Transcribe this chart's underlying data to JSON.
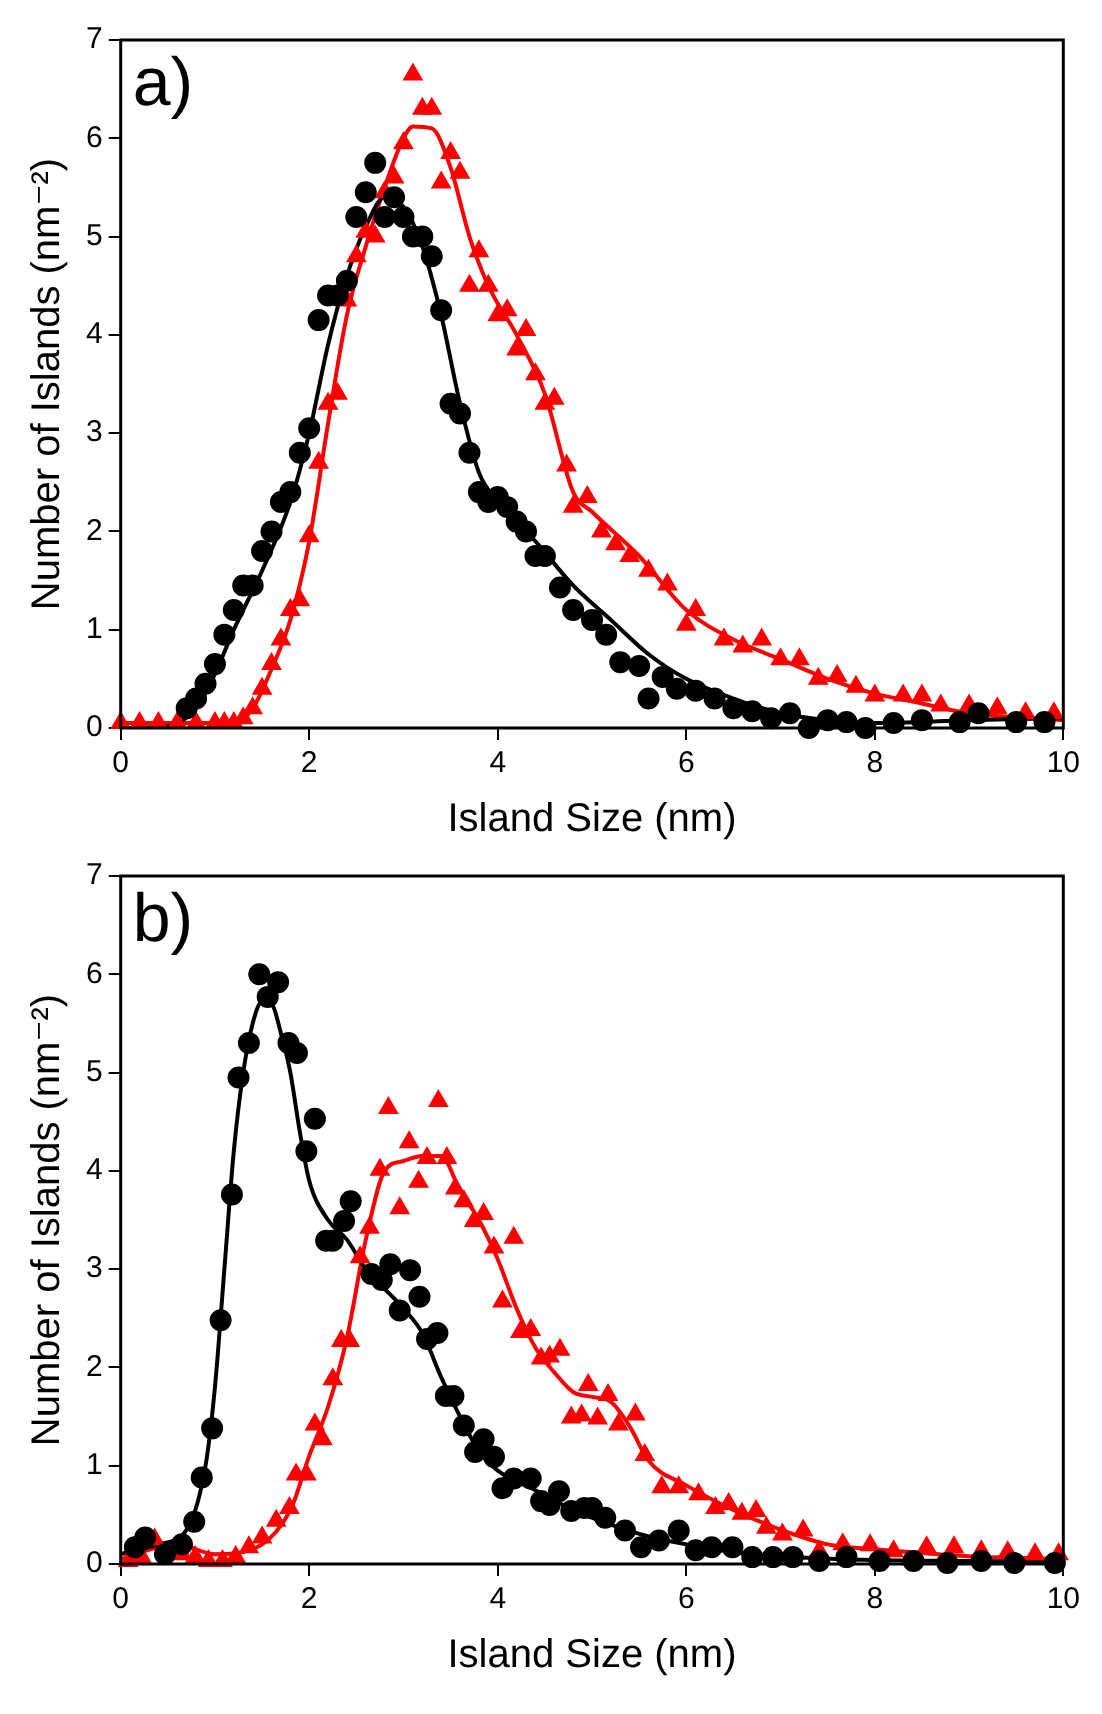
{
  "chart_data": [
    {
      "type": "scatter",
      "xlabel": "Island Size (nm)",
      "ylabel": "Number of Islands (nm⁻²)",
      "annotations": [
        "a)"
      ],
      "xlim": [
        0,
        10
      ],
      "xticks": [
        0,
        2,
        4,
        6,
        8,
        10
      ],
      "ylim": [
        0,
        7
      ],
      "yticks": [
        0,
        1,
        2,
        3,
        4,
        5,
        6,
        7
      ],
      "grid": false,
      "legend": false,
      "series": [
        {
          "type": "scatter",
          "marker": "circle",
          "color": "#000000",
          "x": [
            0.7,
            0.8,
            0.9,
            1.0,
            1.1,
            1.2,
            1.3,
            1.4,
            1.5,
            1.6,
            1.7,
            1.8,
            1.9,
            2.0,
            2.1,
            2.2,
            2.3,
            2.4,
            2.5,
            2.6,
            2.7,
            2.8,
            2.9,
            3.0,
            3.1,
            3.2,
            3.3,
            3.4,
            3.5,
            3.6,
            3.7,
            3.8,
            3.9,
            4.0,
            4.1,
            4.2,
            4.3,
            4.4,
            4.5,
            4.66,
            4.8,
            5.0,
            5.15,
            5.3,
            5.5,
            5.6,
            5.75,
            5.9,
            6.1,
            6.3,
            6.5,
            6.7,
            6.9,
            7.1,
            7.3,
            7.5,
            7.7,
            7.9,
            8.2,
            8.5,
            8.9,
            9.1,
            9.5,
            9.8
          ],
          "values": [
            0.2,
            0.3,
            0.45,
            0.65,
            0.95,
            1.2,
            1.45,
            1.45,
            1.8,
            2.0,
            2.3,
            2.4,
            2.8,
            3.05,
            4.15,
            4.4,
            4.4,
            4.55,
            5.2,
            5.45,
            5.75,
            5.2,
            5.4,
            5.2,
            5.0,
            5.0,
            4.8,
            4.25,
            3.3,
            3.2,
            2.8,
            2.4,
            2.3,
            2.35,
            2.25,
            2.1,
            2.0,
            1.75,
            1.75,
            1.43,
            1.2,
            1.1,
            0.95,
            0.67,
            0.63,
            0.3,
            0.52,
            0.4,
            0.38,
            0.3,
            0.2,
            0.17,
            0.1,
            0.15,
            0.0,
            0.08,
            0.06,
            0.0,
            0.05,
            0.08,
            0.06,
            0.15,
            0.06,
            0.06
          ]
        },
        {
          "type": "scatter",
          "marker": "triangle",
          "color": "#ff0000",
          "x": [
            0,
            0.2,
            0.4,
            0.6,
            0.8,
            1.0,
            1.1,
            1.2,
            1.3,
            1.4,
            1.5,
            1.6,
            1.7,
            1.8,
            1.9,
            2.0,
            2.1,
            2.2,
            2.3,
            2.4,
            2.5,
            2.6,
            2.7,
            2.8,
            2.9,
            3.0,
            3.1,
            3.2,
            3.3,
            3.4,
            3.5,
            3.6,
            3.7,
            3.8,
            3.9,
            4.0,
            4.1,
            4.2,
            4.3,
            4.4,
            4.5,
            4.6,
            4.73,
            4.8,
            4.95,
            5.1,
            5.25,
            5.4,
            5.6,
            5.8,
            6.0,
            6.1,
            6.4,
            6.6,
            6.8,
            7.0,
            7.2,
            7.4,
            7.6,
            7.8,
            8.0,
            8.3,
            8.5,
            8.7,
            9.0,
            9.3,
            9.6,
            9.9
          ],
          "values": [
            0.05,
            0.05,
            0.05,
            0.05,
            0.05,
            0.05,
            0.05,
            0.05,
            0.1,
            0.2,
            0.4,
            0.65,
            0.9,
            1.2,
            1.3,
            1.95,
            2.7,
            3.3,
            3.4,
            4.35,
            4.8,
            5.05,
            5.0,
            5.45,
            5.6,
            5.95,
            6.65,
            6.3,
            6.3,
            5.55,
            5.85,
            5.65,
            4.5,
            4.85,
            4.5,
            4.2,
            4.25,
            3.85,
            4.05,
            3.6,
            3.3,
            3.35,
            2.67,
            2.25,
            2.35,
            2.0,
            1.87,
            1.75,
            1.6,
            1.46,
            1.05,
            1.2,
            0.9,
            0.83,
            0.9,
            0.7,
            0.7,
            0.5,
            0.53,
            0.42,
            0.33,
            0.33,
            0.33,
            0.23,
            0.23,
            0.2,
            0.15,
            0.15
          ]
        },
        {
          "type": "line",
          "marker": "none",
          "color": "#000000",
          "x": [
            0,
            0.5,
            0.8,
            1.0,
            1.2,
            1.5,
            1.8,
            2.0,
            2.2,
            2.4,
            2.6,
            2.8,
            3.0,
            3.2,
            3.4,
            3.6,
            3.8,
            4.0,
            4.4,
            4.8,
            5.2,
            5.6,
            6.0,
            6.5,
            7.0,
            7.5,
            8.0,
            9.0,
            10
          ],
          "values": [
            0,
            0.02,
            0.2,
            0.55,
            1.0,
            1.6,
            2.3,
            3.0,
            3.9,
            4.6,
            5.1,
            5.4,
            5.3,
            4.9,
            4.2,
            3.3,
            2.6,
            2.3,
            1.9,
            1.45,
            1.1,
            0.75,
            0.5,
            0.3,
            0.15,
            0.08,
            0.05,
            0.08,
            0.1
          ]
        },
        {
          "type": "line",
          "marker": "none",
          "color": "#ff0000",
          "x": [
            0,
            1.2,
            1.4,
            1.6,
            1.8,
            2.0,
            2.2,
            2.4,
            2.6,
            2.8,
            3.0,
            3.1,
            3.3,
            3.5,
            3.7,
            3.9,
            4.2,
            4.5,
            4.8,
            5.0,
            5.5,
            6.0,
            6.5,
            7.0,
            7.5,
            8.0,
            8.5,
            9.0,
            10
          ],
          "values": [
            0.05,
            0.05,
            0.2,
            0.6,
            1.1,
            1.9,
            3.1,
            4.2,
            4.9,
            5.5,
            6.0,
            6.12,
            6.1,
            5.7,
            5.0,
            4.5,
            4.0,
            3.4,
            2.4,
            2.2,
            1.75,
            1.2,
            0.9,
            0.7,
            0.5,
            0.35,
            0.25,
            0.15,
            0.08
          ]
        }
      ]
    },
    {
      "type": "scatter",
      "xlabel": "Island Size (nm)",
      "ylabel": "Number of Islands (nm⁻²)",
      "annotations": [
        "b)"
      ],
      "xlim": [
        0,
        10
      ],
      "xticks": [
        0,
        2,
        4,
        6,
        8,
        10
      ],
      "ylim": [
        0,
        7
      ],
      "yticks": [
        0,
        1,
        2,
        3,
        4,
        5,
        6,
        7
      ],
      "grid": false,
      "legend": false,
      "series": [
        {
          "type": "scatter",
          "marker": "circle",
          "color": "#000000",
          "x": [
            0.15,
            0.26,
            0.47,
            0.65,
            0.78,
            0.86,
            0.97,
            1.06,
            1.18,
            1.25,
            1.36,
            1.47,
            1.56,
            1.67,
            1.78,
            1.87,
            1.97,
            2.06,
            2.18,
            2.25,
            2.37,
            2.44,
            2.66,
            2.77,
            2.86,
            2.96,
            3.07,
            3.17,
            3.25,
            3.36,
            3.45,
            3.53,
            3.64,
            3.76,
            3.85,
            3.96,
            4.05,
            4.17,
            4.35,
            4.46,
            4.55,
            4.65,
            4.78,
            4.92,
            5.0,
            5.14,
            5.35,
            5.52,
            5.71,
            5.92,
            6.1,
            6.27,
            6.49,
            6.7,
            6.92,
            7.13,
            7.41,
            7.7,
            8.05,
            8.41,
            8.77,
            9.13,
            9.48,
            9.91
          ],
          "values": [
            0.17,
            0.27,
            0.1,
            0.2,
            0.43,
            0.88,
            1.38,
            2.48,
            3.76,
            4.95,
            5.3,
            6.0,
            5.77,
            5.92,
            5.3,
            5.2,
            4.2,
            4.53,
            3.29,
            3.29,
            3.49,
            3.69,
            2.95,
            2.89,
            3.05,
            2.58,
            2.99,
            2.72,
            2.29,
            2.35,
            1.71,
            1.71,
            1.41,
            1.14,
            1.27,
            1.09,
            0.77,
            0.87,
            0.87,
            0.64,
            0.6,
            0.74,
            0.54,
            0.57,
            0.57,
            0.47,
            0.34,
            0.17,
            0.24,
            0.34,
            0.14,
            0.17,
            0.17,
            0.07,
            0.07,
            0.07,
            0.03,
            0.07,
            0.03,
            0.03,
            0.01,
            0.03,
            0.01,
            0.01
          ]
        },
        {
          "type": "scatter",
          "marker": "triangle",
          "color": "#ff0000",
          "x": [
            0.08,
            0.22,
            0.36,
            0.65,
            0.79,
            0.93,
            1.08,
            1.22,
            1.36,
            1.5,
            1.65,
            1.79,
            1.86,
            1.97,
            2.06,
            2.14,
            2.25,
            2.34,
            2.43,
            2.54,
            2.64,
            2.75,
            2.84,
            2.96,
            3.06,
            3.16,
            3.25,
            3.37,
            3.46,
            3.55,
            3.64,
            3.75,
            3.85,
            3.96,
            4.05,
            4.17,
            4.24,
            4.35,
            4.46,
            4.55,
            4.66,
            4.78,
            4.89,
            4.96,
            5.06,
            5.17,
            5.28,
            5.46,
            5.56,
            5.74,
            5.92,
            6.13,
            6.31,
            6.45,
            6.59,
            6.74,
            6.85,
            7.02,
            7.24,
            7.41,
            7.66,
            7.95,
            8.2,
            8.55,
            8.84,
            9.13,
            9.41,
            9.7,
            9.95
          ],
          "values": [
            0.03,
            0.07,
            0.25,
            0.1,
            0.07,
            0.03,
            0.03,
            0.07,
            0.17,
            0.27,
            0.44,
            0.57,
            0.91,
            0.91,
            1.42,
            1.27,
            1.88,
            2.27,
            2.27,
            3.12,
            3.42,
            4.01,
            4.64,
            3.62,
            4.29,
            3.89,
            4.13,
            4.71,
            4.13,
            3.82,
            3.69,
            3.49,
            3.56,
            3.22,
            2.67,
            3.32,
            2.36,
            2.38,
            2.09,
            2.11,
            2.18,
            1.49,
            1.51,
            1.82,
            1.48,
            1.72,
            1.42,
            1.52,
            1.11,
            0.78,
            0.78,
            0.71,
            0.57,
            0.61,
            0.51,
            0.54,
            0.37,
            0.3,
            0.34,
            0.13,
            0.2,
            0.19,
            0.13,
            0.17,
            0.17,
            0.13,
            0.12,
            0.1,
            0.1
          ]
        },
        {
          "type": "line",
          "marker": "none",
          "color": "#000000",
          "x": [
            0,
            0.4,
            0.7,
            0.9,
            1.0,
            1.1,
            1.2,
            1.3,
            1.4,
            1.5,
            1.6,
            1.7,
            1.8,
            1.9,
            2.0,
            2.2,
            2.4,
            2.6,
            2.8,
            3.0,
            3.2,
            3.4,
            3.6,
            3.8,
            4.0,
            4.4,
            4.8,
            5.2,
            5.6,
            6.0,
            6.5,
            7.0,
            8.0,
            9.0,
            10
          ],
          "values": [
            0.1,
            0.2,
            0.35,
            1.0,
            1.8,
            3.0,
            4.2,
            5.0,
            5.5,
            5.72,
            5.7,
            5.4,
            5.0,
            4.4,
            3.9,
            3.5,
            3.3,
            3.0,
            2.8,
            2.6,
            2.35,
            1.9,
            1.5,
            1.15,
            0.95,
            0.75,
            0.55,
            0.4,
            0.28,
            0.2,
            0.12,
            0.08,
            0.04,
            0.03,
            0.02
          ]
        },
        {
          "type": "line",
          "marker": "none",
          "color": "#ff0000",
          "x": [
            0,
            0.6,
            1.0,
            1.4,
            1.8,
            2.0,
            2.2,
            2.4,
            2.6,
            2.8,
            3.0,
            3.2,
            3.4,
            3.6,
            3.8,
            4.0,
            4.2,
            4.4,
            4.6,
            4.8,
            5.0,
            5.2,
            5.4,
            5.6,
            6.0,
            6.5,
            7.0,
            7.5,
            8.0,
            9.0,
            10
          ],
          "values": [
            0.05,
            0.2,
            0.1,
            0.15,
            0.55,
            1.1,
            1.6,
            2.3,
            3.3,
            4.0,
            4.1,
            4.15,
            4.15,
            3.8,
            3.5,
            3.1,
            2.6,
            2.2,
            1.95,
            1.75,
            1.7,
            1.65,
            1.4,
            1.05,
            0.8,
            0.55,
            0.35,
            0.2,
            0.15,
            0.08,
            0.05
          ]
        }
      ]
    }
  ]
}
